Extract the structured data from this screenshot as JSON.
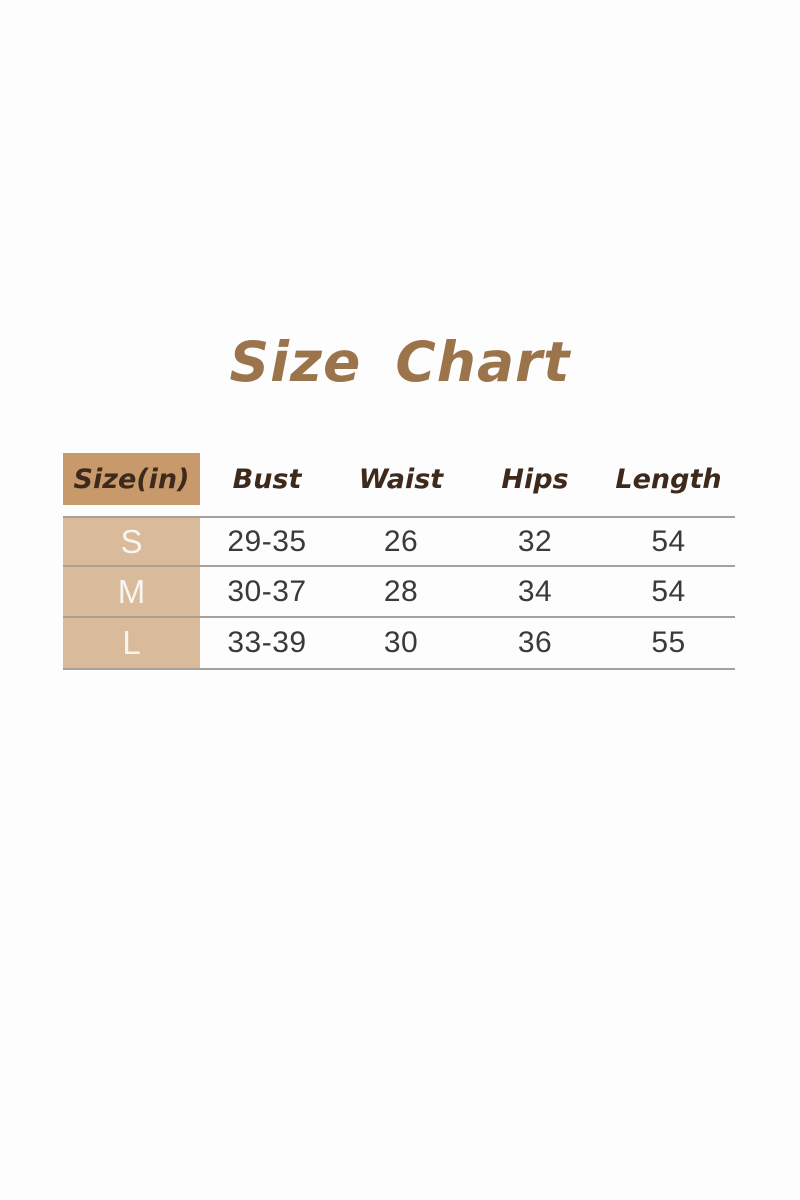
{
  "page": {
    "title": "Size Chart"
  },
  "colors": {
    "title_brown": "#9b744b",
    "header_text_brown": "#3e2a1c",
    "header_tan": "#c89a6b",
    "row_tan": "#d9ba9a",
    "size_letter_white": "#f8f5f1",
    "data_text": "#3a3a3a",
    "divider_gray": "#a8a19a",
    "background": "#fdfdfd"
  },
  "table": {
    "columns": [
      "Size(in)",
      "Bust",
      "Waist",
      "Hips",
      "Length"
    ],
    "rows": [
      {
        "size": "S",
        "bust": "29-35",
        "waist": "26",
        "hips": "32",
        "length": "54"
      },
      {
        "size": "M",
        "bust": "30-37",
        "waist": "28",
        "hips": "34",
        "length": "54"
      },
      {
        "size": "L",
        "bust": "33-39",
        "waist": "30",
        "hips": "36",
        "length": "55"
      }
    ]
  },
  "chart_data": {
    "type": "table",
    "title": "Size Chart",
    "unit": "inches",
    "columns": [
      "Size(in)",
      "Bust",
      "Waist",
      "Hips",
      "Length"
    ],
    "rows": [
      [
        "S",
        "29-35",
        "26",
        "32",
        "54"
      ],
      [
        "M",
        "30-37",
        "28",
        "34",
        "54"
      ],
      [
        "L",
        "33-39",
        "30",
        "36",
        "55"
      ]
    ]
  }
}
